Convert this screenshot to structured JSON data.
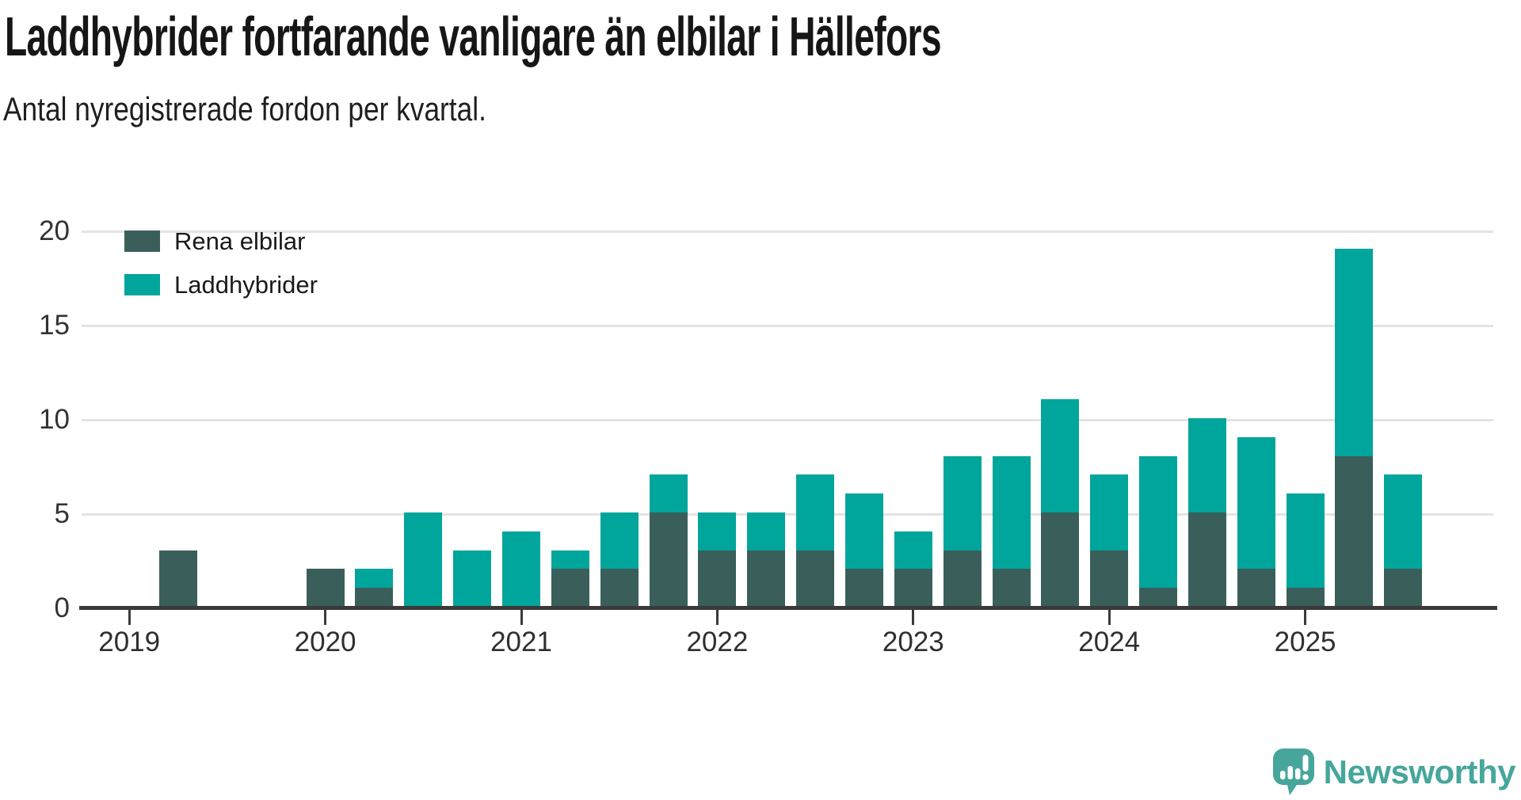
{
  "chart_data": {
    "type": "bar",
    "stacked": true,
    "title": "Laddhybrider fortfarande vanligare än elbilar i Hällefors",
    "subtitle": "Antal nyregistrerade fordon per kvartal.",
    "categories": [
      "2019 Q1",
      "2019 Q2",
      "2019 Q3",
      "2019 Q4",
      "2020 Q1",
      "2020 Q2",
      "2020 Q3",
      "2020 Q4",
      "2021 Q1",
      "2021 Q2",
      "2021 Q3",
      "2021 Q4",
      "2022 Q1",
      "2022 Q2",
      "2022 Q3",
      "2022 Q4",
      "2023 Q1",
      "2023 Q2",
      "2023 Q3",
      "2023 Q4",
      "2024 Q1",
      "2024 Q2",
      "2024 Q3",
      "2024 Q4",
      "2025 Q1",
      "2025 Q2",
      "2025 Q3"
    ],
    "series": [
      {
        "name": "Rena elbilar",
        "color": "#3a5f5a",
        "values": [
          0,
          3,
          0,
          0,
          2,
          1,
          0,
          0,
          0,
          2,
          2,
          5,
          3,
          3,
          3,
          2,
          2,
          3,
          2,
          5,
          3,
          1,
          5,
          2,
          1,
          8,
          2
        ]
      },
      {
        "name": "Laddhybrider",
        "color": "#00a59b",
        "values": [
          0,
          0,
          0,
          0,
          0,
          1,
          5,
          3,
          4,
          1,
          3,
          2,
          2,
          2,
          4,
          4,
          2,
          5,
          6,
          6,
          4,
          7,
          5,
          7,
          5,
          11,
          5
        ]
      }
    ],
    "xticks": [
      "2019",
      "2020",
      "2021",
      "2022",
      "2023",
      "2024",
      "2025"
    ],
    "yticks": [
      0,
      5,
      10,
      15,
      20
    ],
    "ylim": [
      0,
      20
    ],
    "xlabel": "",
    "ylabel": "",
    "grid": "horizontal",
    "legend_position": "top-left"
  },
  "footer": {
    "brand": "Newsworthy",
    "brand_color": "#47a69c"
  }
}
